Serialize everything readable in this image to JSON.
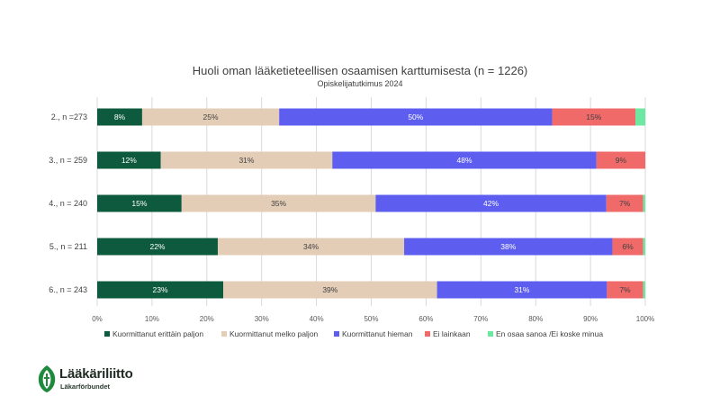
{
  "chart_data": {
    "type": "bar",
    "orientation": "horizontal",
    "stacked": true,
    "title": "Huoli oman lääketieteellisen osaamisen karttumisesta (n = 1226)",
    "subtitle": "Opiskelijatutkimus 2024",
    "categories": [
      "2., n =273",
      "3., n = 259",
      "4., n = 240",
      "5., n = 211",
      "6., n = 243"
    ],
    "x_ticks": [
      "0%",
      "10%",
      "20%",
      "30%",
      "40%",
      "50%",
      "60%",
      "70%",
      "80%",
      "90%",
      "100%"
    ],
    "xlim": [
      0,
      100
    ],
    "grid": true,
    "legend_position": "bottom",
    "series": [
      {
        "name": "Kuormittanut erittäin paljon",
        "color": "#0e5a3e",
        "values": [
          8.2,
          11.6,
          15.4,
          22.0,
          23.0
        ],
        "labels": [
          "8%",
          "12%",
          "15%",
          "22%",
          "23%"
        ]
      },
      {
        "name": "Kuormittanut melko paljon",
        "color": "#e3cdb7",
        "values": [
          25.0,
          31.3,
          35.4,
          34.0,
          39.0
        ],
        "labels": [
          "25%",
          "31%",
          "35%",
          "34%",
          "39%"
        ]
      },
      {
        "name": "Kuormittanut hieman",
        "color": "#5d5df0",
        "values": [
          49.8,
          48.2,
          42.1,
          38.0,
          31.0
        ],
        "labels": [
          "50%",
          "48%",
          "42%",
          "38%",
          "31%"
        ]
      },
      {
        "name": "Ei lainkaan",
        "color": "#f06a6a",
        "values": [
          15.2,
          8.9,
          6.7,
          5.6,
          6.6
        ],
        "labels": [
          "15%",
          "9%",
          "7%",
          "6%",
          "7%"
        ]
      },
      {
        "name": "En osaa sanoa /Ei koske minua",
        "color": "#6de8a2",
        "values": [
          1.8,
          0.0,
          0.4,
          0.4,
          0.4
        ],
        "labels": [
          "",
          "",
          "",
          "",
          ""
        ]
      }
    ]
  },
  "logo": {
    "title": "Lääkäriliitto",
    "subtitle": "Läkarförbundet"
  }
}
